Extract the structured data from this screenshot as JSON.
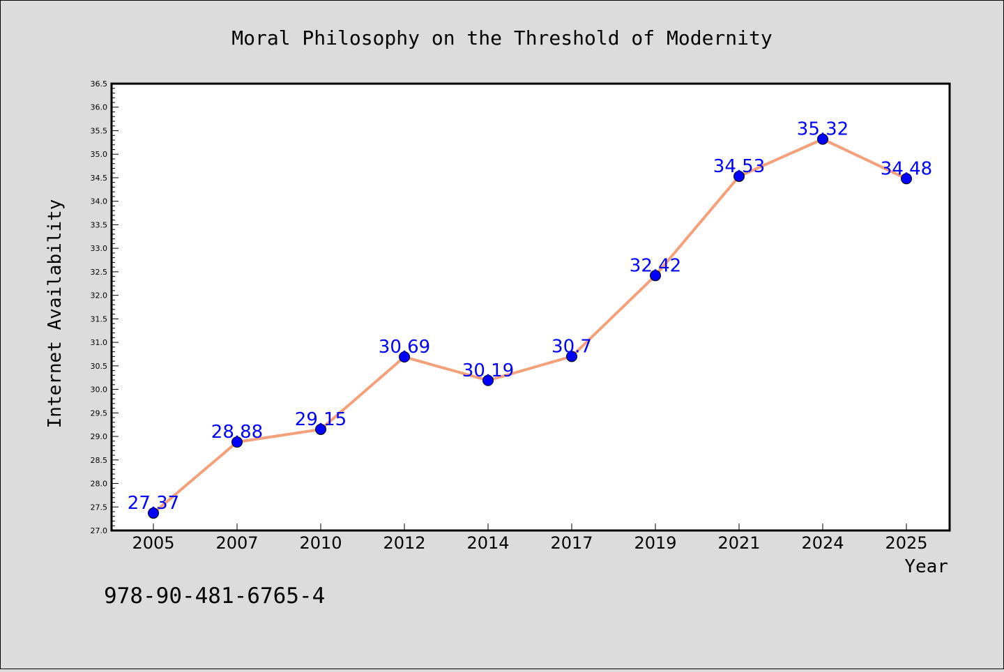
{
  "chart_data": {
    "type": "line",
    "title": "Moral Philosophy on the Threshold of Modernity",
    "xlabel": "Year",
    "ylabel": "Internet Availability",
    "categories": [
      "2005",
      "2007",
      "2010",
      "2012",
      "2014",
      "2017",
      "2019",
      "2021",
      "2024",
      "2025"
    ],
    "series": [
      {
        "values": [
          27.37,
          28.88,
          29.15,
          30.69,
          30.19,
          30.7,
          32.42,
          34.53,
          35.32,
          34.48
        ],
        "data_labels": [
          "27.37",
          "28.88",
          "29.15",
          "30.69",
          "30.19",
          "30.7",
          "32.42",
          "34.53",
          "35.32",
          "34.48"
        ],
        "line_color": "#f4a07a",
        "marker_color": "#0000ff"
      }
    ],
    "ylim": [
      27.0,
      36.5
    ],
    "yticks": [
      "27.0",
      "27.5",
      "28.0",
      "28.5",
      "29.0",
      "29.5",
      "30.0",
      "30.5",
      "31.0",
      "31.5",
      "32.0",
      "32.5",
      "33.0",
      "33.5",
      "34.0",
      "34.5",
      "35.0",
      "35.5",
      "36.0",
      "36.5"
    ],
    "grid": false,
    "legend": "none"
  },
  "footnote": "978-90-481-6765-4",
  "colors": {
    "background": "#dcdcdc",
    "plot_background": "#ffffff",
    "line": "#f4a07a",
    "marker": "#0000ff",
    "data_label": "#0000ff"
  }
}
